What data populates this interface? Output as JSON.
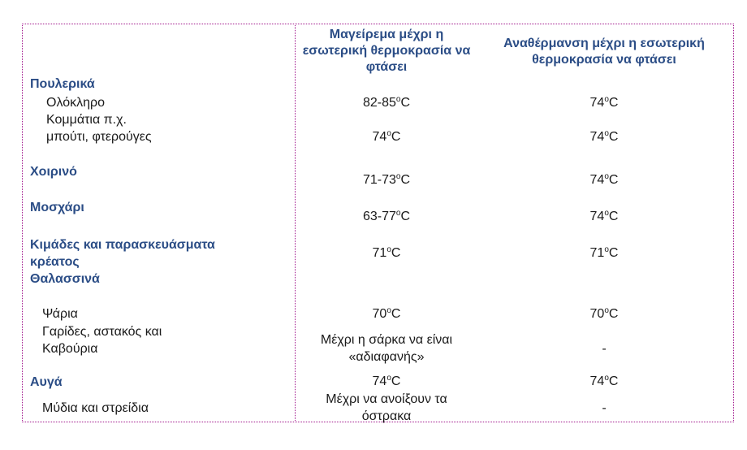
{
  "header": {
    "cooking": "Μαγείρεμα μέχρι η εσωτερική θερμοκρασία να φτάσει",
    "reheating": "Αναθέρμανση μέχρι η εσωτερική θερμοκρασία να φτάσει"
  },
  "unit": "C",
  "degree_mark": "o",
  "rows": {
    "poultry": {
      "label": "Πουλερικά"
    },
    "whole": {
      "label": "Ολόκληρο",
      "cook": "82-85",
      "reheat": "74"
    },
    "pieces": {
      "label1": "Κομμάτια π.χ.",
      "label2": "μπούτι, φτερούγες",
      "cook": "74",
      "reheat": "74"
    },
    "pork": {
      "label": "Χοιρινό",
      "cook": "71-73",
      "reheat": "74"
    },
    "beef": {
      "label": "Μοσχάρι",
      "cook": "63-77",
      "reheat": "74"
    },
    "mince": {
      "label1": "Κιμάδες και παρασκευάσματα",
      "label2": "κρέατος",
      "cook": "71",
      "reheat": "71"
    },
    "seafood": {
      "label": "Θαλασσινά"
    },
    "fish": {
      "label": "Ψάρια",
      "cook": "70",
      "reheat": "70"
    },
    "shrimp": {
      "label1": "Γαρίδες, αστακός και",
      "label2": "Καβούρια",
      "cook1": "Μέχρι η σάρκα να είναι",
      "cook2": "«αδιαφανής»",
      "reheat": "-"
    },
    "eggs": {
      "label": "Αυγά",
      "cook": "74",
      "reheat": "74"
    },
    "mussels": {
      "label": "Μύδια και στρείδια",
      "cook1": "Μέχρι να ανοίξουν τα",
      "cook2": "όστρακα",
      "reheat": "-"
    }
  }
}
